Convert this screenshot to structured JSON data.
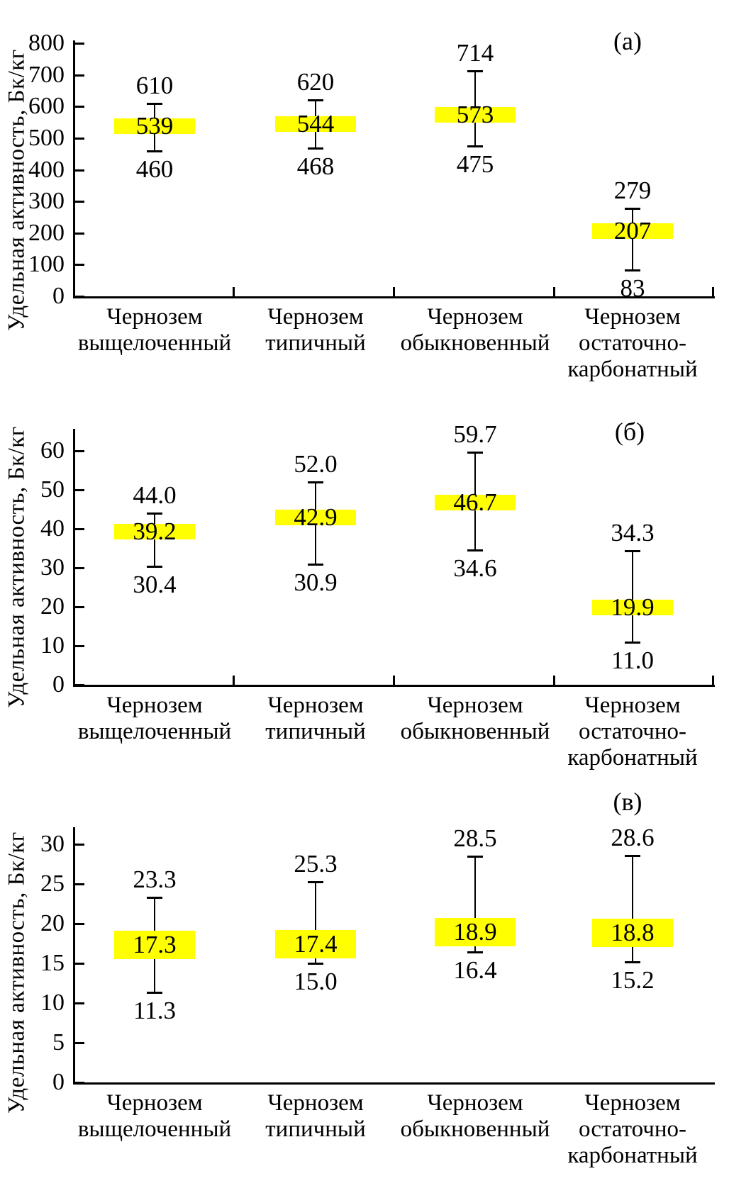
{
  "figure": {
    "background_color": "#ffffff",
    "text_color": "#000000",
    "highlight_color": "#ffff00",
    "axis_color": "#000000"
  },
  "chart_data": [
    {
      "type": "bar",
      "subtype": "mean-min-max-error-bars-with-highlight-box",
      "panel_label": "(а)",
      "ylabel": "Удельная активность, Бк/кг",
      "ylim": [
        0,
        800
      ],
      "ytick_step": 100,
      "ytick_labels": [
        "0",
        "100",
        "200",
        "300",
        "400",
        "500",
        "600",
        "700",
        "800"
      ],
      "grid": "off",
      "categories": [
        [
          "Чернозем",
          "выщелоченный"
        ],
        [
          "Чернозем",
          "типичный"
        ],
        [
          "Чернозем",
          "обыкновенный"
        ],
        [
          "Чернозем",
          "остаточно-",
          "карбонатный"
        ]
      ],
      "series": [
        {
          "name": "max",
          "values": [
            610,
            620,
            714,
            279
          ],
          "labels": [
            "610",
            "620",
            "714",
            "279"
          ]
        },
        {
          "name": "mean",
          "values": [
            539,
            544,
            573,
            207
          ],
          "labels": [
            "539",
            "544",
            "573",
            "207"
          ]
        },
        {
          "name": "min",
          "values": [
            460,
            468,
            475,
            83
          ],
          "labels": [
            "460",
            "468",
            "475",
            "83"
          ]
        }
      ]
    },
    {
      "type": "bar",
      "subtype": "mean-min-max-error-bars-with-highlight-box",
      "panel_label": "(б)",
      "ylabel": "Удельная активность, Бк/кг",
      "ylim": [
        0,
        60
      ],
      "ytick_step": 10,
      "ytick_labels": [
        "0",
        "10",
        "20",
        "30",
        "40",
        "50",
        "60"
      ],
      "grid": "off",
      "categories": [
        [
          "Чернозем",
          "выщелоченный"
        ],
        [
          "Чернозем",
          "типичный"
        ],
        [
          "Чернозем",
          "обыкновенный"
        ],
        [
          "Чернозем",
          "остаточно-",
          "карбонатный"
        ]
      ],
      "series": [
        {
          "name": "max",
          "values": [
            44.0,
            52.0,
            59.7,
            34.3
          ],
          "labels": [
            "44.0",
            "52.0",
            "59.7",
            "34.3"
          ]
        },
        {
          "name": "mean",
          "values": [
            39.2,
            42.9,
            46.7,
            19.9
          ],
          "labels": [
            "39.2",
            "42.9",
            "46.7",
            "19.9"
          ]
        },
        {
          "name": "min",
          "values": [
            30.4,
            30.9,
            34.6,
            11.0
          ],
          "labels": [
            "30.4",
            "30.9",
            "34.6",
            "11.0"
          ]
        }
      ]
    },
    {
      "type": "bar",
      "subtype": "mean-min-max-error-bars-with-highlight-box",
      "panel_label": "(в)",
      "ylabel": "Удельная активность, Бк/кг",
      "ylim": [
        0,
        30
      ],
      "ytick_step": 5,
      "ytick_labels": [
        "0",
        "5",
        "10",
        "15",
        "20",
        "25",
        "30"
      ],
      "grid": "off",
      "categories": [
        [
          "Чернозем",
          "выщелоченный"
        ],
        [
          "Чернозем",
          "типичный"
        ],
        [
          "Чернозем",
          "обыкновенный"
        ],
        [
          "Чернозем",
          "остаточно-",
          "карбонатный"
        ]
      ],
      "series": [
        {
          "name": "max",
          "values": [
            23.3,
            25.3,
            28.5,
            28.6
          ],
          "labels": [
            "23.3",
            "25.3",
            "28.5",
            "28.6"
          ]
        },
        {
          "name": "mean",
          "values": [
            17.3,
            17.4,
            18.9,
            18.8
          ],
          "labels": [
            "17.3",
            "17.4",
            "18.9",
            "18.8"
          ]
        },
        {
          "name": "min",
          "values": [
            11.3,
            15.0,
            16.4,
            15.2
          ],
          "labels": [
            "11.3",
            "15.0",
            "16.4",
            "15.2"
          ]
        }
      ]
    }
  ]
}
